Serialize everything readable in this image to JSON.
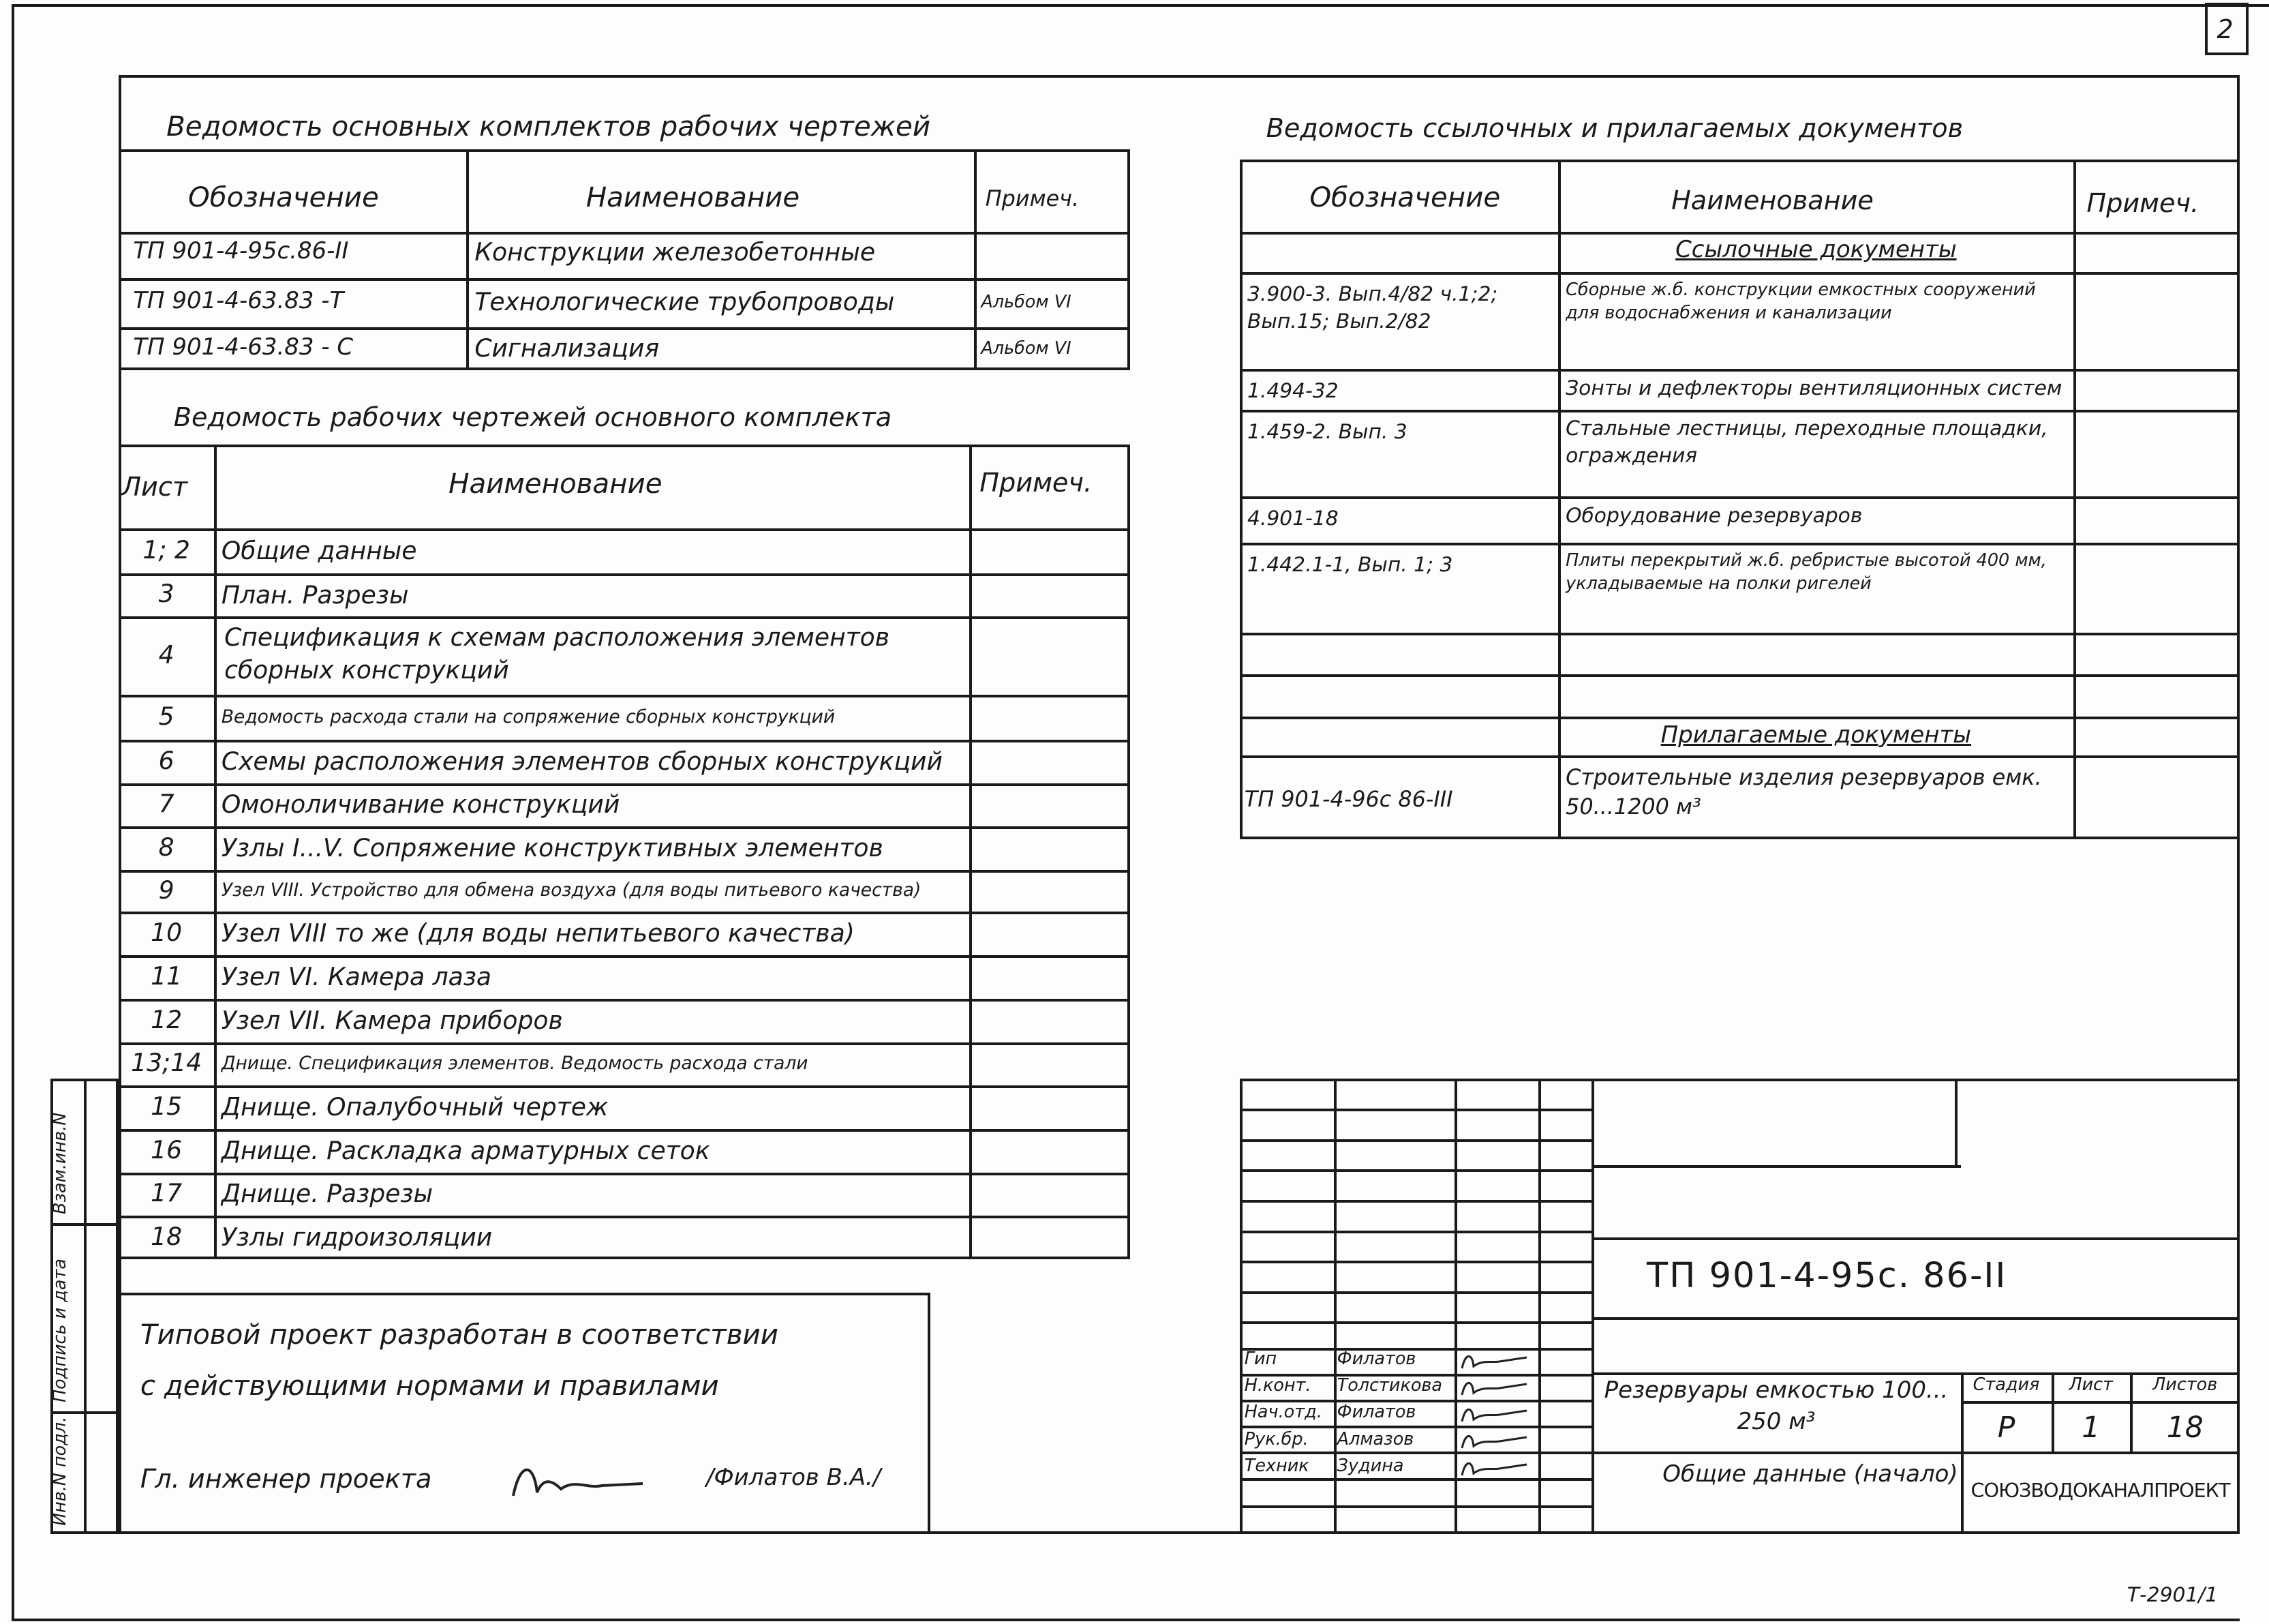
{
  "sheet_number": "2",
  "archive_number": "Т-2901/1",
  "main_sets": {
    "title": "Ведомость основных комплектов рабочих чертежей",
    "headers": [
      "Обозначение",
      "Наименование",
      "Примеч."
    ],
    "rows": [
      [
        "ТП 901-4-95с.86-II",
        "Конструкции железобетонные",
        ""
      ],
      [
        "ТП 901-4-63.83 -Т",
        "Технологические трубопроводы",
        "Альбом VI"
      ],
      [
        "ТП 901-4-63.83 - С",
        "Сигнализация",
        "Альбом VI"
      ]
    ]
  },
  "drawings": {
    "title": "Ведомость рабочих чертежей основного комплекта",
    "headers": [
      "Лист",
      "Наименование",
      "Примеч."
    ],
    "rows": [
      [
        "1; 2",
        "Общие данные"
      ],
      [
        "3",
        "План. Разрезы"
      ],
      [
        "4",
        "Спецификация к схемам расположения элементов сборных конструкций"
      ],
      [
        "5",
        "Ведомость расхода стали на сопряжение сборных конструкций"
      ],
      [
        "6",
        "Схемы расположения элементов сборных конструкций"
      ],
      [
        "7",
        "Омоноличивание конструкций"
      ],
      [
        "8",
        "Узлы I...V. Сопряжение конструктивных элементов"
      ],
      [
        "9",
        "Узел VIII. Устройство для обмена воздуха (для воды питьевого качества)"
      ],
      [
        "10",
        "Узел VIII то же (для воды непитьевого качества)"
      ],
      [
        "11",
        "Узел VI. Камера лаза"
      ],
      [
        "12",
        "Узел VII. Камера приборов"
      ],
      [
        "13;14",
        "Днище. Спецификация элементов. Ведомость расхода стали"
      ],
      [
        "15",
        "Днище. Опалубочный чертеж"
      ],
      [
        "16",
        "Днище. Раскладка арматурных сеток"
      ],
      [
        "17",
        "Днище. Разрезы"
      ],
      [
        "18",
        "Узлы гидроизоляции"
      ]
    ]
  },
  "note": {
    "line1": "Типовой проект разработан в соответствии",
    "line2": "с действующими нормами и правилами",
    "engineer_label": "Гл. инженер проекта",
    "engineer_name": "/Филатов В.А./"
  },
  "references": {
    "title": "Ведомость ссылочных и прилагаемых документов",
    "headers": [
      "Обозначение",
      "Наименование",
      "Примеч."
    ],
    "section_ref": "Ссылочные документы",
    "section_att": "Прилагаемые документы",
    "ref_rows": [
      [
        "3.900-3. Вып.4/82 ч.1;2; Вып.15; Вып.2/82",
        "Сборные ж.б. конструкции емкостных сооружений для водоснабжения и канализации"
      ],
      [
        "1.494-32",
        "Зонты и дефлекторы вентиляционных систем"
      ],
      [
        "1.459-2. Вып. 3",
        "Стальные лестницы, переходные площадки, ограждения"
      ],
      [
        "4.901-18",
        "Оборудование резервуаров"
      ],
      [
        "1.442.1-1, Вып. 1; 3",
        "Плиты перекрытий ж.б. ребристые высотой 400 мм, укладываемые на полки ригелей"
      ]
    ],
    "att_rows": [
      [
        "ТП 901-4-96с 86-III",
        "Строительные изделия резервуаров емк. 50...1200 м³"
      ]
    ]
  },
  "title_block": {
    "code": "ТП 901-4-95с. 86-II",
    "object": "Резервуары емкостью 100... 250 м³",
    "sheet_title": "Общие данные (начало)",
    "stage_label": "Стадия",
    "sheet_label": "Лист",
    "sheets_label": "Листов",
    "stage": "Р",
    "sheet": "1",
    "sheets": "18",
    "organization": "СОЮЗВОДОКАНАЛПРОЕКТ",
    "signers": [
      [
        "Гип",
        "Филатов"
      ],
      [
        "Н.конт.",
        "Толстикова"
      ],
      [
        "Нач.отд.",
        "Филатов"
      ],
      [
        "Рук.бр.",
        "Алмазов"
      ],
      [
        "Техник",
        "Зудина"
      ]
    ]
  },
  "side_stamp": [
    "Инв.N подл.",
    "Подпись и дата",
    "Взам.инв.N"
  ]
}
